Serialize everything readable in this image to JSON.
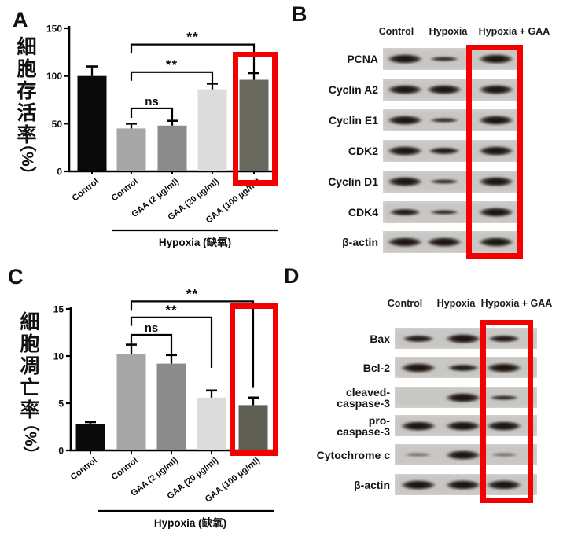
{
  "figure": {
    "background": "#ffffff",
    "highlight_color": "#f40000",
    "panels": {
      "a": {
        "letter": "A"
      },
      "b": {
        "letter": "B",
        "blot": {
          "lanes": [
            "Control",
            "Hypoxia",
            "Hypoxia + GAA"
          ],
          "highlighted_lane": "Hypoxia + GAA",
          "rows": [
            {
              "label": "PCNA",
              "bands": [
                "strong",
                "thin",
                "strong"
              ]
            },
            {
              "label": "Cyclin A2",
              "bands": [
                "strong",
                "strong",
                "strong"
              ]
            },
            {
              "label": "Cyclin E1",
              "bands": [
                "strong",
                "thin",
                "strong"
              ]
            },
            {
              "label": "CDK2",
              "bands": [
                "strong",
                "medium",
                "strong"
              ]
            },
            {
              "label": "Cyclin D1",
              "bands": [
                "strong",
                "thin",
                "strong"
              ]
            },
            {
              "label": "CDK4",
              "bands": [
                "medium",
                "thin",
                "strong"
              ]
            },
            {
              "label": "β-actin",
              "bands": [
                "strong",
                "strong",
                "strong"
              ]
            }
          ]
        }
      },
      "c": {
        "letter": "C"
      },
      "d": {
        "letter": "D",
        "blot": {
          "lanes": [
            "Control",
            "Hypoxia",
            "Hypoxia + GAA"
          ],
          "highlighted_lane": "Hypoxia + GAA",
          "rows": [
            {
              "label": "Bax",
              "bands": [
                "medium",
                "strong",
                "medium"
              ]
            },
            {
              "label": "Bcl-2",
              "bands": [
                "strong",
                "medium",
                "strong"
              ]
            },
            {
              "label": "cleaved-\ncaspase-3",
              "bands": [
                "none",
                "strong",
                "thin"
              ]
            },
            {
              "label": "pro-\ncaspase-3",
              "bands": [
                "strong",
                "strong",
                "strong"
              ]
            },
            {
              "label": "Cytochrome c",
              "bands": [
                "faint",
                "strong",
                "faint"
              ]
            },
            {
              "label": "β-actin",
              "bands": [
                "strong",
                "strong",
                "strong"
              ]
            }
          ]
        }
      }
    }
  },
  "chart_data": [
    {
      "panel": "A",
      "type": "bar",
      "title": "",
      "ylabel": "細胞存活率",
      "ylabel_unit": "（%）",
      "xlabel": "",
      "ylim": [
        0,
        150
      ],
      "yticks": [
        0,
        50,
        100,
        150
      ],
      "grid": false,
      "categories": [
        "Control",
        "Control",
        "GAA (2 µg/ml)",
        "GAA (20 µg/ml)",
        "GAA (100 µg/ml)"
      ],
      "values": [
        100,
        45,
        48,
        86,
        96
      ],
      "errors": [
        10,
        5,
        5,
        6,
        7
      ],
      "bar_colors": [
        "#0a0a0a",
        "#a6a6a6",
        "#8b8b8b",
        "#dcdcdc",
        "#68685f"
      ],
      "group_label": "Hypoxia (缺氧)",
      "group_bars": [
        1,
        4
      ],
      "highlighted_bar": 4,
      "significance": [
        {
          "from": 1,
          "to": 2,
          "label": "ns",
          "y": 66,
          "left_end": 56,
          "right_end": 52
        },
        {
          "from": 1,
          "to": 3,
          "label": "**",
          "y": 104,
          "left_end": 95,
          "right_end": 92
        },
        {
          "from": 1,
          "to": 4,
          "label": "**",
          "y": 133,
          "left_end": 124,
          "right_end": 103
        }
      ]
    },
    {
      "panel": "C",
      "type": "bar",
      "title": "",
      "ylabel": "細胞凋亡率",
      "ylabel_unit": "（%）",
      "xlabel": "",
      "ylim": [
        0,
        15
      ],
      "yticks": [
        0,
        5,
        10,
        15
      ],
      "grid": false,
      "categories": [
        "Control",
        "Control",
        "GAA (2 µg/ml)",
        "GAA (20 µg/ml)",
        "GAA (100 µg/ml)"
      ],
      "values": [
        2.8,
        10.2,
        9.2,
        5.6,
        4.8
      ],
      "errors": [
        0.2,
        1.0,
        0.9,
        0.75,
        0.8
      ],
      "bar_colors": [
        "#0a0a0a",
        "#a6a6a6",
        "#8b8b8b",
        "#dcdcdc",
        "#5f5f56"
      ],
      "group_label": "Hypoxia (缺氧)",
      "group_bars": [
        1,
        4
      ],
      "highlighted_bar": 4,
      "significance": [
        {
          "from": 1,
          "to": 2,
          "label": "ns",
          "y": 12.25,
          "left_end": 11.25,
          "right_end": 10.25
        },
        {
          "from": 1,
          "to": 3,
          "label": "**",
          "y": 14.1,
          "left_end": 13.2,
          "right_end": 8.75
        },
        {
          "from": 1,
          "to": 4,
          "label": "**",
          "y": 15.8,
          "left_end": 14.8,
          "right_end": 6.7
        }
      ]
    }
  ]
}
